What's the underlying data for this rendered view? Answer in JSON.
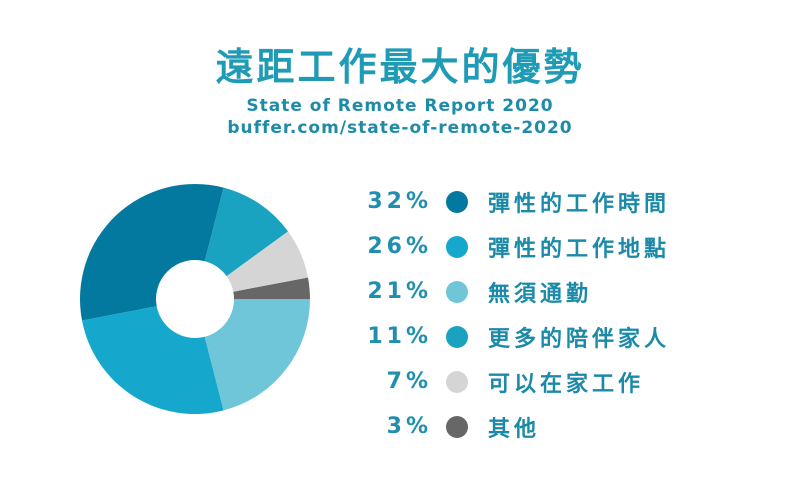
{
  "title": "遠距工作最大的優勢",
  "source": {
    "line1": "State of Remote Report 2020",
    "line2": "buffer.com/state-of-remote-2020"
  },
  "chart_data": {
    "type": "pie",
    "donut": true,
    "categories": [
      "彈性的工作時間",
      "彈性的工作地點",
      "無須通勤",
      "更多的陪伴家人",
      "可以在家工作",
      "其他"
    ],
    "values": [
      32,
      26,
      21,
      11,
      7,
      3
    ],
    "value_labels": [
      "32%",
      "26%",
      "21%",
      "11%",
      "7%",
      "3%"
    ],
    "colors": [
      "#0479a0",
      "#16a8cc",
      "#6fc6d8",
      "#1aa3c0",
      "#d5d5d5",
      "#676767"
    ],
    "legend": "right"
  }
}
